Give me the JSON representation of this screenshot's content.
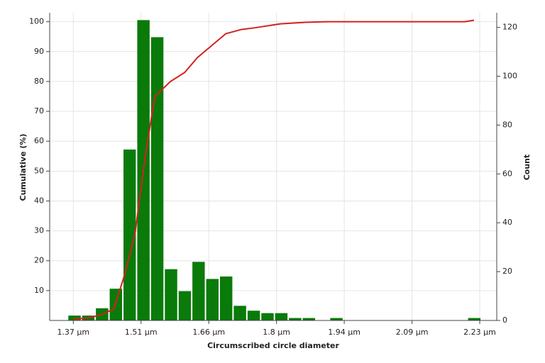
{
  "chart_data": {
    "type": "histogram",
    "xlabel": "Circumscribed circle diameter",
    "ylabel": "Cumulative (%)",
    "y2label": "Count",
    "xlim": [
      1.32,
      2.266
    ],
    "ylim": [
      0,
      103
    ],
    "y2lim": [
      0,
      126
    ],
    "xticks": [
      {
        "value": 1.37,
        "label": "1.37 µm"
      },
      {
        "value": 1.5133,
        "label": "1.51 µm"
      },
      {
        "value": 1.6567,
        "label": "1.66 µm"
      },
      {
        "value": 1.8,
        "label": "1.8 µm"
      },
      {
        "value": 1.9433,
        "label": "1.94 µm"
      },
      {
        "value": 2.0867,
        "label": "2.09 µm"
      },
      {
        "value": 2.23,
        "label": "2.23 µm"
      }
    ],
    "yticks": [
      10,
      20,
      30,
      40,
      50,
      60,
      70,
      80,
      90,
      100
    ],
    "y2ticks": [
      0,
      20,
      40,
      60,
      80,
      100,
      120
    ],
    "grid": true,
    "histogram": {
      "axis": "y2",
      "color": "#0a7a0a",
      "bins": [
        1.358,
        1.3872,
        1.4163,
        1.4455,
        1.4747,
        1.5038,
        1.533,
        1.5622,
        1.5914,
        1.6205,
        1.6497,
        1.6789,
        1.708,
        1.7372,
        1.7664,
        1.7955,
        1.8247,
        1.8539,
        1.8831,
        1.9122,
        1.9414,
        1.9706,
        1.9997,
        2.0289,
        2.0581,
        2.0872,
        2.1164,
        2.1456,
        2.1748,
        2.2039,
        2.2331
      ],
      "values": [
        2,
        2,
        5,
        13,
        70,
        123,
        116,
        21,
        12,
        24,
        17,
        18,
        6,
        4,
        3,
        3,
        1,
        1,
        0,
        1,
        0,
        0,
        0,
        0,
        0,
        0,
        0,
        0,
        0,
        1
      ]
    },
    "line": {
      "axis": "y",
      "color": "#d42020",
      "x": [
        1.37,
        1.3955,
        1.4255,
        1.4556,
        1.478,
        1.5006,
        1.5231,
        1.5426,
        1.5756,
        1.6056,
        1.6326,
        1.6627,
        1.6927,
        1.7257,
        1.7557,
        1.8082,
        1.8608,
        1.9058,
        2.1985,
        2.218
      ],
      "values": [
        0.5,
        0.7,
        1.7,
        3.8,
        15,
        29,
        56,
        75,
        80,
        83,
        88,
        92,
        96,
        97.4,
        98,
        99.3,
        99.8,
        100,
        100,
        100.5
      ]
    }
  }
}
